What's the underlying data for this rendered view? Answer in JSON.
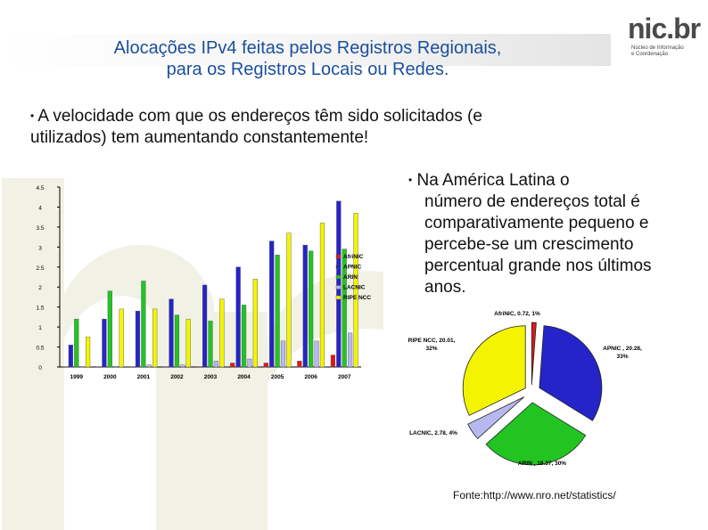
{
  "slide": {
    "title_line1": "Alocações IPv4 feitas pelos Registros Regionais,",
    "title_line2": "para os Registros Locais ou Redes.",
    "bullet_symbol": "•",
    "bullet1_text": " A velocidade com que os endereços têm sido solicitados (e utilizados) tem aumentando constantemente!",
    "bullet2_text": " Na América Latina o",
    "bullet2_continuation": "número de endereços total é comparativamente pequeno e percebe-se um crescimento percentual grande nos últimos anos.",
    "source": "Fonte:http://www.nro.net/statistics/"
  },
  "logo": {
    "main_text": "nic.br",
    "sub_line1": "Núcleo de Informação",
    "sub_line2": "e Coordenação"
  },
  "chart_data": [
    {
      "type": "bar",
      "categories": [
        "1999",
        "2000",
        "2001",
        "2002",
        "2003",
        "2004",
        "2005",
        "2006",
        "2007"
      ],
      "ylim": [
        0,
        4.5
      ],
      "yticks": [
        "0",
        "0.5",
        "1",
        "1.5",
        "2",
        "2.5",
        "3",
        "3.5",
        "4",
        "4.5"
      ],
      "legend_position": "right",
      "series": [
        {
          "name": "AfriNIC",
          "color": "#e01818",
          "values": [
            0,
            0,
            0,
            0,
            0,
            0.1,
            0.1,
            0.15,
            0.3
          ]
        },
        {
          "name": "APNIC",
          "color": "#2424c8",
          "values": [
            0.55,
            1.2,
            1.4,
            1.7,
            2.05,
            2.5,
            3.15,
            3.05,
            4.15
          ]
        },
        {
          "name": "ARIN",
          "color": "#22c422",
          "values": [
            1.2,
            1.9,
            2.15,
            1.3,
            1.15,
            1.55,
            2.8,
            2.9,
            2.95
          ]
        },
        {
          "name": "LACNIC",
          "color": "#b8b8f0",
          "values": [
            0,
            0.02,
            0.05,
            0.05,
            0.15,
            0.2,
            0.65,
            0.65,
            0.85
          ]
        },
        {
          "name": "RIPE NCC",
          "color": "#f4f400",
          "values": [
            0.75,
            1.45,
            1.45,
            1.2,
            1.7,
            2.2,
            3.35,
            3.6,
            3.85
          ]
        }
      ]
    },
    {
      "type": "pie",
      "slices": [
        {
          "label": "AfriNIC, 0.72, 1%",
          "value": 0.72,
          "percent": 1,
          "color": "#e01818"
        },
        {
          "label": "APNIC , 20.28, 33%",
          "value": 20.28,
          "percent": 33,
          "color": "#2424c8"
        },
        {
          "label": "ARIN , 18.37, 30%",
          "value": 18.37,
          "percent": 30,
          "color": "#22c422"
        },
        {
          "label": "LACNIC, 2.78, 4%",
          "value": 2.78,
          "percent": 4,
          "color": "#b8b8f0"
        },
        {
          "label": "RIPE NCC, 20.01, 32%",
          "value": 20.01,
          "percent": 32,
          "color": "#f4f400"
        }
      ]
    }
  ]
}
